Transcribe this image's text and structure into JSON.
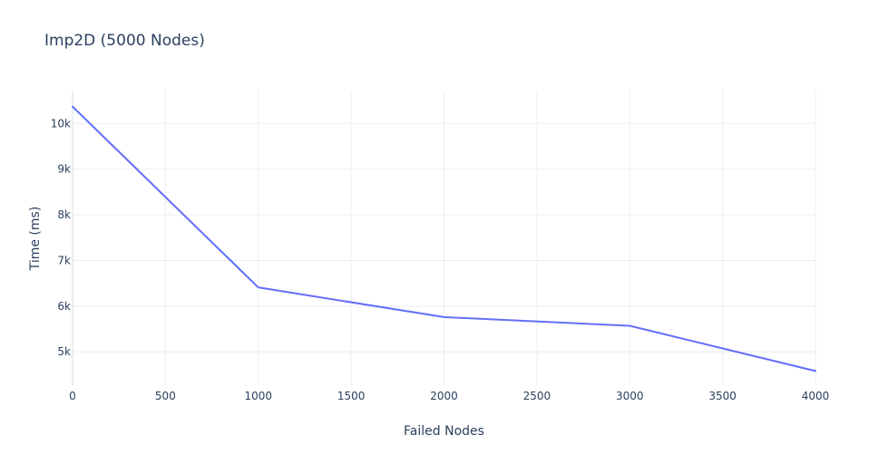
{
  "chart_data": {
    "type": "line",
    "title": "Imp2D (5000 Nodes)",
    "xlabel": "Failed Nodes",
    "ylabel": "Time (ms)",
    "x": [
      0,
      1000,
      2000,
      3000,
      4000
    ],
    "series": [
      {
        "values": [
          10370,
          6410,
          5760,
          5570,
          4580
        ],
        "color": "#636efa"
      }
    ],
    "xlim": [
      0,
      4000
    ],
    "ylim": [
      4270,
      10720
    ],
    "xticks": [
      0,
      500,
      1000,
      1500,
      2000,
      2500,
      3000,
      3500,
      4000
    ],
    "xtick_labels": [
      "0",
      "500",
      "1000",
      "1500",
      "2000",
      "2500",
      "3000",
      "3500",
      "4000"
    ],
    "yticks": [
      5000,
      6000,
      7000,
      8000,
      9000,
      10000
    ],
    "ytick_labels": [
      "5k",
      "6k",
      "7k",
      "8k",
      "9k",
      "10k"
    ],
    "grid": true,
    "legend": "none"
  }
}
